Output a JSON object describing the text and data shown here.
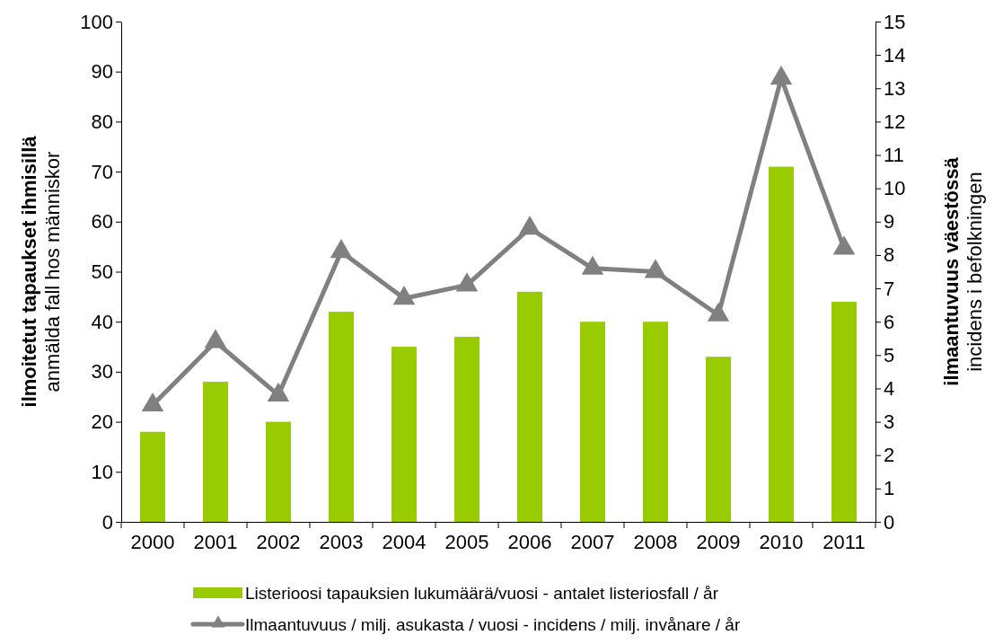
{
  "chart_data": {
    "type": "bar",
    "categories": [
      "2000",
      "2001",
      "2002",
      "2003",
      "2004",
      "2005",
      "2006",
      "2007",
      "2008",
      "2009",
      "2010",
      "2011"
    ],
    "ylabel": "ilmoitetut tapaukset ihmisillä\nanmälda fall hos människor",
    "y2label": "ilmaantuvuus väestössä\nincidens i befolkningen",
    "ylim": [
      0,
      100
    ],
    "yticks": [
      0,
      10,
      20,
      30,
      40,
      50,
      60,
      70,
      80,
      90,
      100
    ],
    "y2lim": [
      0,
      15
    ],
    "y2ticks": [
      0,
      1,
      2,
      3,
      4,
      5,
      6,
      7,
      8,
      9,
      10,
      11,
      12,
      13,
      14,
      15
    ],
    "legend": "bottom",
    "marker": "triangle",
    "grid": false,
    "series": [
      {
        "name": "Listerioosi tapauksien lukumäärä/vuosi - antalet listeriosfall / år",
        "color": "#99cc00",
        "values": [
          18,
          28,
          20,
          42,
          35,
          37,
          46,
          40,
          40,
          33,
          71,
          44
        ]
      },
      {
        "name": "Ilmaantuvuus / milj. asukasta / vuosi - incidens / milj. invånare / år",
        "type": "line",
        "axis": "y2",
        "color": "#808080",
        "values": [
          3.5,
          5.4,
          3.8,
          8.1,
          6.7,
          7.1,
          8.8,
          7.6,
          7.5,
          6.2,
          13.3,
          8.2
        ]
      }
    ]
  }
}
